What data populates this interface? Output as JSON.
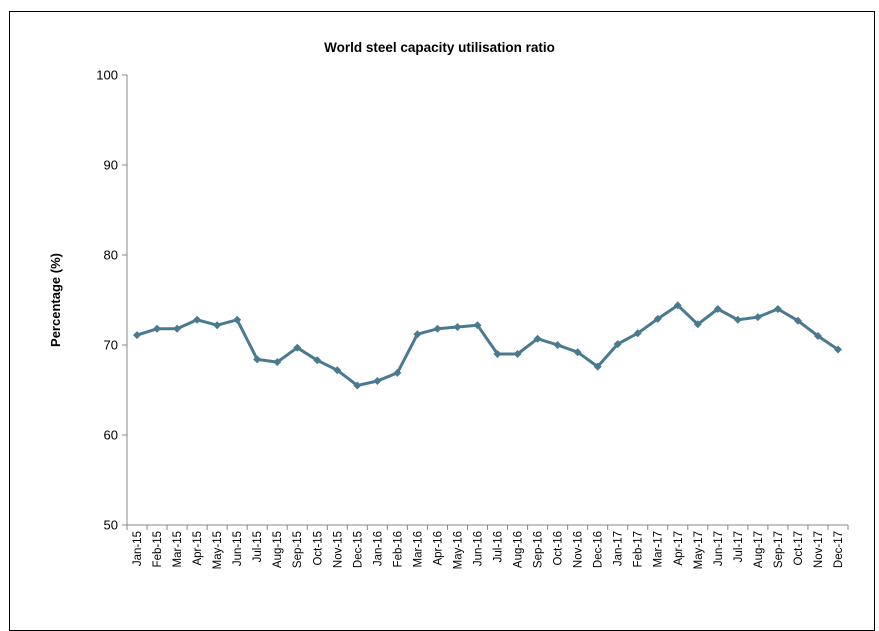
{
  "chart_data": {
    "type": "line",
    "title": "World steel capacity utilisation ratio",
    "xlabel": "",
    "ylabel": "Percentage (%)",
    "ylim": [
      50,
      100
    ],
    "yticks": [
      50,
      60,
      70,
      80,
      90,
      100
    ],
    "grid": false,
    "legend": "none",
    "categories": [
      "Jan-15",
      "Feb-15",
      "Mar-15",
      "Apr-15",
      "May-15",
      "Jun-15",
      "Jul-15",
      "Aug-15",
      "Sep-15",
      "Oct-15",
      "Nov-15",
      "Dec-15",
      "Jan-16",
      "Feb-16",
      "Mar-16",
      "Apr-16",
      "May-16",
      "Jun-16",
      "Jul-16",
      "Aug-16",
      "Sep-16",
      "Oct-16",
      "Nov-16",
      "Dec-16",
      "Jan-17",
      "Feb-17",
      "Mar-17",
      "Apr-17",
      "May-17",
      "Jun-17",
      "Jul-17",
      "Aug-17",
      "Sep-17",
      "Oct-17",
      "Nov-17",
      "Dec-17"
    ],
    "series": [
      {
        "color": "#4a7a90",
        "values": [
          71.1,
          71.8,
          71.8,
          72.8,
          72.2,
          72.8,
          68.4,
          68.1,
          69.7,
          68.3,
          67.2,
          65.5,
          66.0,
          66.9,
          71.2,
          71.8,
          72.0,
          72.2,
          69.0,
          69.0,
          70.7,
          70.0,
          69.2,
          67.6,
          70.1,
          71.3,
          72.9,
          74.4,
          72.3,
          74.0,
          72.8,
          73.1,
          74.0,
          72.7,
          71.0,
          69.5
        ]
      }
    ]
  }
}
